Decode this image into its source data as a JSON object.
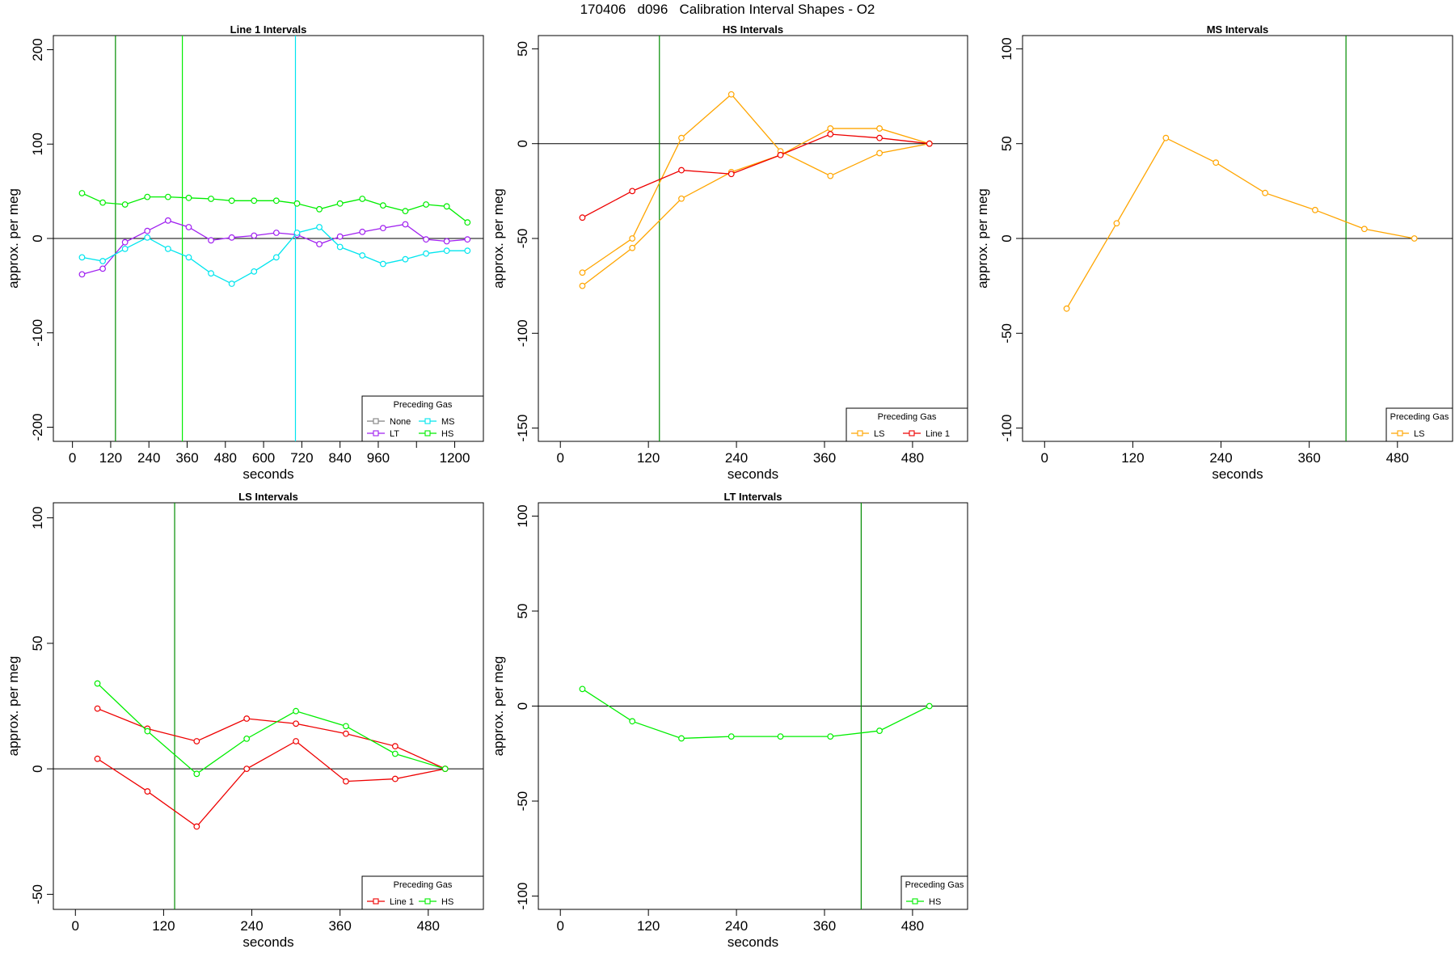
{
  "title": "170406   d096   Calibration Interval Shapes - O2",
  "colors": {
    "axis": "#000000",
    "None": "#808080",
    "LT": "#a020f0",
    "MS": "#00e5ee",
    "HS": "#00ee00",
    "LS": "#ffa500",
    "Line 1": "#ee0000",
    "vline_dark": "#008b00"
  },
  "chart_data": [
    {
      "type": "line",
      "title": "Line 1 Intervals",
      "xlabel": "seconds",
      "ylabel": "approx. per meg",
      "xlim": [
        -60,
        1290
      ],
      "ylim": [
        -215,
        215
      ],
      "xticks": [
        0,
        120,
        240,
        360,
        480,
        600,
        720,
        840,
        960,
        1080,
        1200
      ],
      "xtick_labels": [
        "0",
        "120",
        "240",
        "360",
        "480",
        "600",
        "720",
        "840",
        "960",
        "",
        "1200"
      ],
      "yticks": [
        -200,
        -100,
        0,
        100,
        200
      ],
      "ytick_labels": [
        "-200",
        "-100",
        "0",
        "100",
        "200"
      ],
      "hline": 0,
      "vlines": [
        {
          "x": 135,
          "color": "#008b00"
        },
        {
          "x": 345,
          "color": "#00ee00"
        },
        {
          "x": 700,
          "color": "#00e5ee"
        }
      ],
      "legend": {
        "title": "Preceding Gas",
        "position": "bottom-right",
        "ncol": 2,
        "entries": [
          "None",
          "LT",
          "MS",
          "HS"
        ]
      },
      "series": [
        {
          "name": "LT",
          "color": "#a020f0",
          "x": [
            30,
            95,
            165,
            235,
            300,
            365,
            435,
            500,
            570,
            640,
            705,
            775,
            840,
            910,
            975,
            1045,
            1110,
            1175,
            1240
          ],
          "y": [
            -38,
            -32,
            -4,
            8,
            19,
            12,
            -2,
            1,
            3,
            6,
            4,
            -6,
            2,
            7,
            11,
            15,
            -1,
            -3,
            -1
          ]
        },
        {
          "name": "MS",
          "color": "#00e5ee",
          "x": [
            30,
            95,
            165,
            235,
            300,
            365,
            435,
            500,
            570,
            640,
            705,
            775,
            840,
            910,
            975,
            1045,
            1110,
            1175,
            1240
          ],
          "y": [
            -20,
            -24,
            -11,
            1,
            -11,
            -20,
            -37,
            -48,
            -35,
            -20,
            6,
            12,
            -9,
            -18,
            -27,
            -22,
            -16,
            -13,
            -13
          ]
        },
        {
          "name": "HS",
          "color": "#00ee00",
          "x": [
            30,
            95,
            165,
            235,
            300,
            365,
            435,
            500,
            570,
            640,
            705,
            775,
            840,
            910,
            975,
            1045,
            1110,
            1175,
            1240
          ],
          "y": [
            48,
            38,
            36,
            44,
            44,
            43,
            42,
            40,
            40,
            40,
            37,
            31,
            37,
            42,
            35,
            29,
            36,
            34,
            17
          ]
        }
      ]
    },
    {
      "type": "line",
      "title": "HS Intervals",
      "xlabel": "seconds",
      "ylabel": "approx. per meg",
      "xlim": [
        -30,
        555
      ],
      "ylim": [
        -157,
        57
      ],
      "xticks": [
        0,
        120,
        240,
        360,
        480
      ],
      "xtick_labels": [
        "0",
        "120",
        "240",
        "360",
        "480"
      ],
      "yticks": [
        -150,
        -100,
        -50,
        0,
        50
      ],
      "ytick_labels": [
        "-150",
        "-100",
        "-50",
        "0",
        "50"
      ],
      "hline": 0,
      "vlines": [
        {
          "x": 135,
          "color": "#008b00"
        }
      ],
      "legend": {
        "title": "Preceding Gas",
        "position": "bottom-right",
        "ncol": 2,
        "entries": [
          "LS",
          "Line 1"
        ]
      },
      "series": [
        {
          "name": "LS",
          "color": "#ffa500",
          "x": [
            30,
            98,
            165,
            233,
            300,
            368,
            435,
            503
          ],
          "y": [
            -68,
            -50,
            3,
            26,
            -4,
            -17,
            -5,
            0
          ]
        },
        {
          "name": "LS",
          "color": "#ffa500",
          "x": [
            30,
            98,
            165,
            233,
            300,
            368,
            435,
            503
          ],
          "y": [
            -75,
            -55,
            -29,
            -15,
            -6,
            8,
            8,
            0
          ]
        },
        {
          "name": "Line 1",
          "color": "#ee0000",
          "x": [
            30,
            98,
            165,
            233,
            300,
            368,
            435,
            503
          ],
          "y": [
            -39,
            -25,
            -14,
            -16,
            -6,
            5,
            3,
            0
          ]
        }
      ]
    },
    {
      "type": "line",
      "title": "MS Intervals",
      "xlabel": "seconds",
      "ylabel": "approx. per meg",
      "xlim": [
        -30,
        555
      ],
      "ylim": [
        -107,
        107
      ],
      "xticks": [
        0,
        120,
        240,
        360,
        480
      ],
      "xtick_labels": [
        "0",
        "120",
        "240",
        "360",
        "480"
      ],
      "yticks": [
        -100,
        -50,
        0,
        50,
        100
      ],
      "ytick_labels": [
        "-100",
        "-50",
        "0",
        "50",
        "100"
      ],
      "hline": 0,
      "vlines": [
        {
          "x": 410,
          "color": "#008b00"
        }
      ],
      "legend": {
        "title": "Preceding Gas",
        "position": "bottom-right",
        "ncol": 1,
        "entries": [
          "LS"
        ]
      },
      "series": [
        {
          "name": "LS",
          "color": "#ffa500",
          "x": [
            30,
            98,
            165,
            233,
            300,
            368,
            435,
            503
          ],
          "y": [
            -37,
            8,
            53,
            40,
            24,
            15,
            5,
            0
          ]
        }
      ]
    },
    {
      "type": "line",
      "title": "LS Intervals",
      "xlabel": "seconds",
      "ylabel": "approx. per meg",
      "xlim": [
        -30,
        555
      ],
      "ylim": [
        -56,
        106
      ],
      "xticks": [
        0,
        120,
        240,
        360,
        480
      ],
      "xtick_labels": [
        "0",
        "120",
        "240",
        "360",
        "480"
      ],
      "yticks": [
        -50,
        0,
        50,
        100
      ],
      "ytick_labels": [
        "-50",
        "0",
        "50",
        "100"
      ],
      "hline": 0,
      "vlines": [
        {
          "x": 135,
          "color": "#008b00"
        }
      ],
      "legend": {
        "title": "Preceding Gas",
        "position": "bottom-right",
        "ncol": 2,
        "entries": [
          "Line 1",
          "HS"
        ]
      },
      "series": [
        {
          "name": "Line 1",
          "color": "#ee0000",
          "x": [
            30,
            98,
            165,
            233,
            300,
            368,
            435,
            503
          ],
          "y": [
            24,
            16,
            11,
            20,
            18,
            14,
            9,
            0
          ]
        },
        {
          "name": "Line 1",
          "color": "#ee0000",
          "x": [
            30,
            98,
            165,
            233,
            300,
            368,
            435,
            503
          ],
          "y": [
            4,
            -9,
            -23,
            0,
            11,
            -5,
            -4,
            0
          ]
        },
        {
          "name": "HS",
          "color": "#00ee00",
          "x": [
            30,
            98,
            165,
            233,
            300,
            368,
            435,
            503
          ],
          "y": [
            34,
            15,
            -2,
            12,
            23,
            17,
            6,
            0
          ]
        }
      ]
    },
    {
      "type": "line",
      "title": "LT Intervals",
      "xlabel": "seconds",
      "ylabel": "approx. per meg",
      "xlim": [
        -30,
        555
      ],
      "ylim": [
        -107,
        107
      ],
      "xticks": [
        0,
        120,
        240,
        360,
        480
      ],
      "xtick_labels": [
        "0",
        "120",
        "240",
        "360",
        "480"
      ],
      "yticks": [
        -100,
        -50,
        0,
        50,
        100
      ],
      "ytick_labels": [
        "-100",
        "-50",
        "0",
        "50",
        "100"
      ],
      "hline": 0,
      "vlines": [
        {
          "x": 410,
          "color": "#008b00"
        }
      ],
      "legend": {
        "title": "Preceding Gas",
        "position": "bottom-right",
        "ncol": 1,
        "entries": [
          "HS"
        ]
      },
      "series": [
        {
          "name": "HS",
          "color": "#00ee00",
          "x": [
            30,
            98,
            165,
            233,
            300,
            368,
            435,
            503
          ],
          "y": [
            9,
            -8,
            -17,
            -16,
            -16,
            -16,
            -13,
            0
          ]
        }
      ]
    }
  ]
}
